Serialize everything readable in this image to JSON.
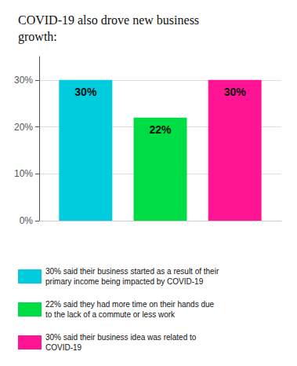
{
  "chart_data": {
    "type": "bar",
    "title": "COVID-19 also drove new business\ngrowth:",
    "categories": [
      null
    ],
    "series": [
      {
        "name": "30% said their business started as a result of their\nprimary income being impacted by COVID-19",
        "color": "#00CCDD",
        "values": [
          30
        ],
        "value_labels": [
          "30%"
        ]
      },
      {
        "name": "22% said they had more time on their hands due\nto the lack of a commute or less work",
        "color": "#00DD44",
        "values": [
          22
        ],
        "value_labels": [
          "22%"
        ]
      },
      {
        "name": "30% said their business idea was related to\nCOVID-19",
        "color": "#FF1493",
        "values": [
          30
        ],
        "value_labels": [
          "30%"
        ]
      }
    ],
    "ylim": [
      0,
      35
    ],
    "yticks": [
      {
        "value": 0,
        "label": "0%"
      },
      {
        "value": 10,
        "label": "10%"
      },
      {
        "value": 20,
        "label": "20%"
      },
      {
        "value": 30,
        "label": "30%"
      }
    ],
    "grid": true,
    "legend": "bottom",
    "data_labels": true,
    "tick_labels": "y"
  }
}
